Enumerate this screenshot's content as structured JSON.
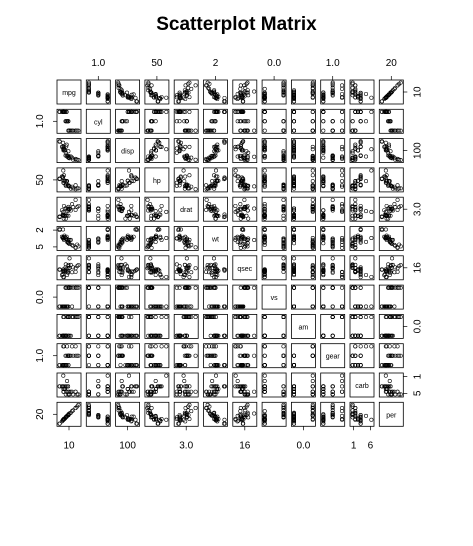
{
  "chart_data": {
    "type": "scatter",
    "title": "Scatterplot Matrix",
    "variables": [
      "mpg",
      "cyl",
      "disp",
      "hp",
      "drat",
      "wt",
      "qsec",
      "vs",
      "am",
      "gear",
      "carb",
      "per"
    ],
    "axis_ticks": {
      "top": [
        {
          "var": "cyl",
          "labels": [
            "1.0"
          ]
        },
        {
          "var": "hp",
          "labels": [
            "50"
          ]
        },
        {
          "var": "wt",
          "labels": [
            "2"
          ]
        },
        {
          "var": "vs",
          "labels": [
            "0.0"
          ]
        },
        {
          "var": "gear",
          "labels": [
            "1.0"
          ]
        },
        {
          "var": "per",
          "labels": [
            "20"
          ]
        }
      ],
      "bottom": [
        {
          "var": "mpg",
          "labels": [
            "10"
          ]
        },
        {
          "var": "disp",
          "labels": [
            "100"
          ]
        },
        {
          "var": "drat",
          "labels": [
            "3.0"
          ]
        },
        {
          "var": "qsec",
          "labels": [
            "16"
          ]
        },
        {
          "var": "am",
          "labels": [
            "0.0"
          ]
        },
        {
          "var": "carb",
          "labels": [
            "1",
            "6"
          ]
        }
      ],
      "left": [
        {
          "var": "cyl",
          "labels": [
            "1.0"
          ]
        },
        {
          "var": "hp",
          "labels": [
            "50"
          ]
        },
        {
          "var": "wt",
          "labels": [
            "2",
            "5"
          ]
        },
        {
          "var": "vs",
          "labels": [
            "0.0"
          ]
        },
        {
          "var": "gear",
          "labels": [
            "1.0"
          ]
        },
        {
          "var": "per",
          "labels": [
            "20"
          ]
        }
      ],
      "right": [
        {
          "var": "mpg",
          "labels": [
            "10"
          ]
        },
        {
          "var": "disp",
          "labels": [
            "100"
          ]
        },
        {
          "var": "drat",
          "labels": [
            "3.0"
          ]
        },
        {
          "var": "qsec",
          "labels": [
            "16"
          ]
        },
        {
          "var": "am",
          "labels": [
            "0.0"
          ]
        },
        {
          "var": "carb",
          "labels": [
            "1",
            "5"
          ]
        }
      ]
    },
    "observations": {
      "mpg": [
        21.0,
        21.0,
        22.8,
        21.4,
        18.7,
        18.1,
        14.3,
        24.4,
        22.8,
        19.2,
        17.8,
        16.4,
        17.3,
        15.2,
        10.4,
        10.4,
        14.7,
        32.4,
        30.4,
        33.9,
        21.5,
        15.5,
        15.2,
        13.3,
        19.2,
        27.3,
        26.0,
        30.4,
        15.8,
        19.7,
        15.0,
        21.4
      ],
      "cyl": [
        6,
        6,
        4,
        6,
        8,
        6,
        8,
        4,
        4,
        6,
        6,
        8,
        8,
        8,
        8,
        8,
        8,
        4,
        4,
        4,
        4,
        8,
        8,
        8,
        8,
        4,
        4,
        4,
        8,
        6,
        8,
        4
      ],
      "disp": [
        160,
        160,
        108,
        258,
        360,
        225,
        360,
        146.7,
        140.8,
        167.6,
        167.6,
        275.8,
        275.8,
        275.8,
        472,
        460,
        440,
        78.7,
        75.7,
        71.1,
        120.1,
        318,
        304,
        350,
        400,
        79,
        120.3,
        95.1,
        351,
        145,
        301,
        121
      ],
      "hp": [
        110,
        110,
        93,
        110,
        175,
        105,
        245,
        62,
        95,
        123,
        123,
        180,
        180,
        180,
        205,
        215,
        230,
        66,
        52,
        65,
        97,
        150,
        150,
        245,
        175,
        66,
        91,
        113,
        264,
        175,
        335,
        109
      ],
      "drat": [
        3.9,
        3.9,
        3.85,
        3.08,
        3.15,
        2.76,
        3.21,
        3.69,
        3.92,
        3.92,
        3.92,
        3.07,
        3.07,
        3.07,
        2.93,
        3.0,
        3.23,
        4.08,
        4.93,
        4.22,
        3.7,
        2.76,
        3.15,
        3.73,
        3.08,
        4.08,
        4.43,
        3.77,
        4.22,
        3.62,
        3.54,
        4.11
      ],
      "wt": [
        2.62,
        2.875,
        2.32,
        3.215,
        3.44,
        3.46,
        3.57,
        3.19,
        3.15,
        3.44,
        3.44,
        4.07,
        3.73,
        3.78,
        5.25,
        5.424,
        5.345,
        2.2,
        1.615,
        1.835,
        2.465,
        3.52,
        3.435,
        3.84,
        3.845,
        1.935,
        2.14,
        1.513,
        3.17,
        2.77,
        3.57,
        2.78
      ],
      "qsec": [
        16.46,
        17.02,
        18.61,
        19.44,
        17.02,
        20.22,
        15.84,
        20.0,
        22.9,
        18.3,
        18.9,
        17.4,
        17.6,
        18.0,
        17.98,
        17.82,
        17.42,
        19.47,
        18.52,
        19.9,
        20.01,
        16.87,
        17.3,
        15.41,
        17.05,
        18.9,
        16.7,
        16.9,
        14.5,
        15.5,
        14.6,
        18.6
      ],
      "vs": [
        0,
        0,
        1,
        1,
        0,
        1,
        0,
        1,
        1,
        1,
        1,
        0,
        0,
        0,
        0,
        0,
        0,
        1,
        1,
        1,
        1,
        0,
        0,
        0,
        0,
        1,
        0,
        1,
        0,
        0,
        0,
        1
      ],
      "am": [
        1,
        1,
        1,
        0,
        0,
        0,
        0,
        0,
        0,
        0,
        0,
        0,
        0,
        0,
        0,
        0,
        0,
        1,
        1,
        1,
        0,
        0,
        0,
        0,
        0,
        1,
        1,
        1,
        1,
        1,
        1,
        1
      ],
      "gear": [
        4,
        4,
        4,
        3,
        3,
        3,
        3,
        4,
        4,
        4,
        4,
        3,
        3,
        3,
        3,
        3,
        3,
        4,
        4,
        4,
        3,
        3,
        3,
        3,
        3,
        4,
        5,
        5,
        5,
        5,
        5,
        4
      ],
      "carb": [
        4,
        4,
        1,
        1,
        2,
        1,
        4,
        2,
        2,
        4,
        4,
        3,
        3,
        3,
        4,
        4,
        4,
        1,
        2,
        1,
        1,
        2,
        2,
        4,
        2,
        1,
        2,
        2,
        4,
        6,
        8,
        2
      ],
      "per": [
        21,
        21,
        23,
        21,
        19,
        18,
        14,
        24,
        23,
        19,
        18,
        16,
        17,
        15,
        10,
        10,
        15,
        32,
        30,
        34,
        22,
        16,
        15,
        13,
        19,
        27,
        26,
        30,
        16,
        20,
        15,
        21
      ]
    },
    "grid": false,
    "legend": "none"
  }
}
